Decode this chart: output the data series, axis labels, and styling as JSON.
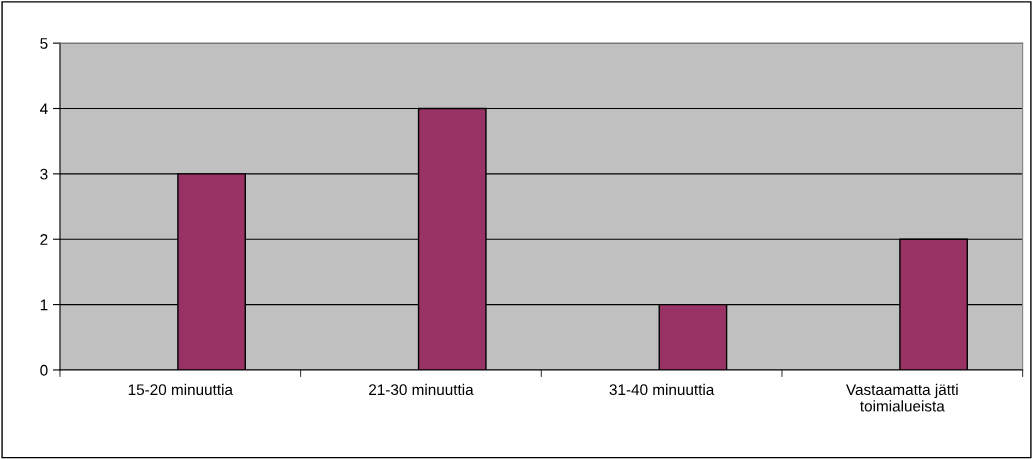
{
  "chart_data": {
    "type": "bar",
    "categories": [
      "15-20 minuuttia",
      "21-30 minuuttia",
      "31-40 minuuttia",
      "Vastaamatta jätti\ntoimialueista"
    ],
    "values": [
      3,
      4,
      1,
      2
    ],
    "color": "#993366",
    "ylim": [
      0,
      5
    ],
    "yticks": [
      0,
      1,
      2,
      3,
      4,
      5
    ],
    "grid": "y",
    "legend": false
  }
}
